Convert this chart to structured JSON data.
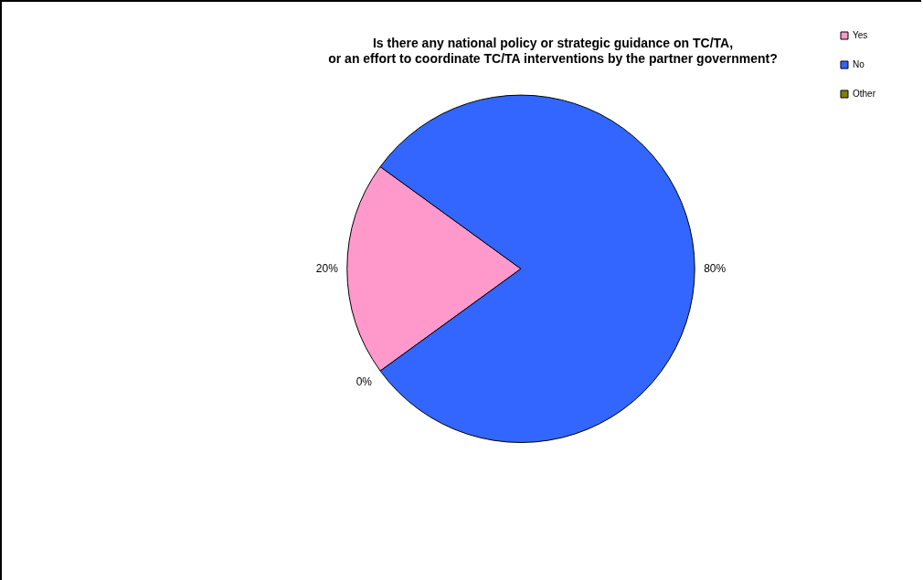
{
  "chart_data": {
    "type": "pie",
    "title": "Is there any national policy or strategic guidance on TC/TA,\nor an effort to coordinate TC/TA interventions by the partner government?",
    "categories": [
      "Yes",
      "No",
      "Other"
    ],
    "values": [
      20,
      80,
      0
    ],
    "colors": [
      "#ff99cc",
      "#3366ff",
      "#808000"
    ],
    "value_labels": [
      "20%",
      "80%",
      "0%"
    ],
    "legend": "top right"
  }
}
